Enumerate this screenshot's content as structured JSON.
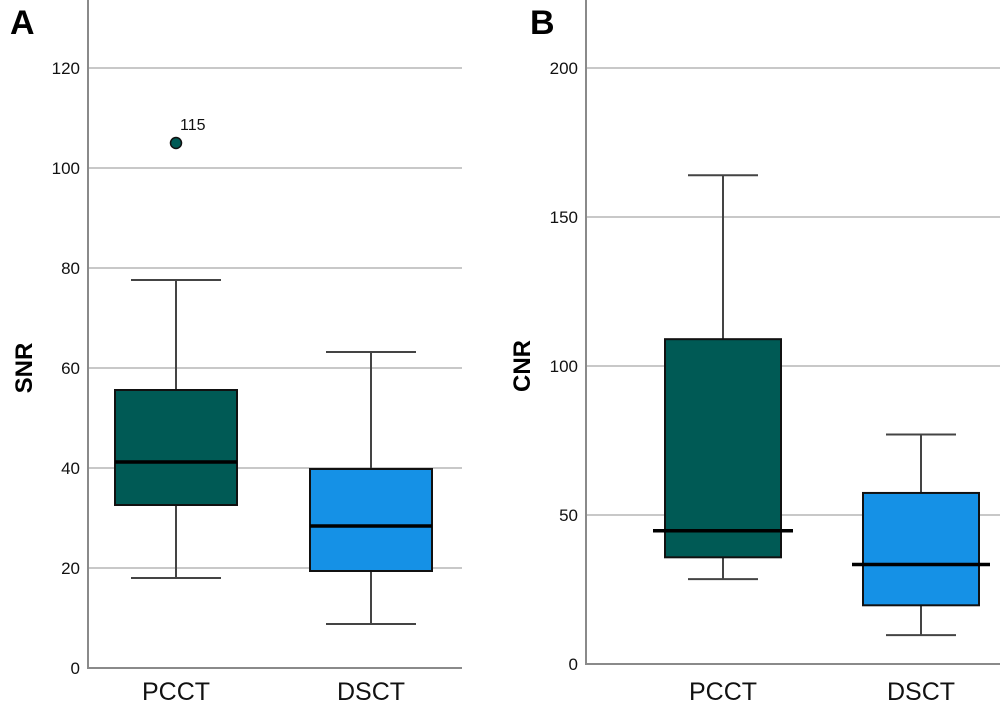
{
  "chart_data": [
    {
      "type": "box",
      "panel_label": "A",
      "title": "",
      "xlabel": "",
      "ylabel": "SNR",
      "ylim": [
        0,
        130
      ],
      "yticks": [
        0,
        20,
        40,
        60,
        80,
        100,
        120
      ],
      "grid": true,
      "categories": [
        "PCCT",
        "DSCT"
      ],
      "series": [
        {
          "name": "PCCT",
          "color": "#005a55",
          "whisker_low": 18,
          "q1": 32.6,
          "median": 41.2,
          "q3": 55.6,
          "whisker_high": 77.6,
          "outliers": [
            {
              "value": 105,
              "label": "115"
            }
          ]
        },
        {
          "name": "DSCT",
          "color": "#1591e6",
          "whisker_low": 8.8,
          "q1": 19.4,
          "median": 28.4,
          "q3": 39.8,
          "whisker_high": 63.2,
          "outliers": []
        }
      ]
    },
    {
      "type": "box",
      "panel_label": "B",
      "title": "",
      "xlabel": "",
      "ylabel": "CNR",
      "ylim": [
        0,
        220
      ],
      "yticks": [
        0,
        50,
        100,
        150,
        200
      ],
      "grid": true,
      "categories": [
        "PCCT",
        "DSCT"
      ],
      "series": [
        {
          "name": "PCCT",
          "color": "#005a55",
          "whisker_low": 28.5,
          "q1": 35.8,
          "median": 44.7,
          "q3": 109,
          "whisker_high": 164,
          "outliers": []
        },
        {
          "name": "DSCT",
          "color": "#1591e6",
          "whisker_low": 9.7,
          "q1": 19.7,
          "median": 33.4,
          "q3": 57.4,
          "whisker_high": 77,
          "outliers": []
        }
      ]
    }
  ]
}
